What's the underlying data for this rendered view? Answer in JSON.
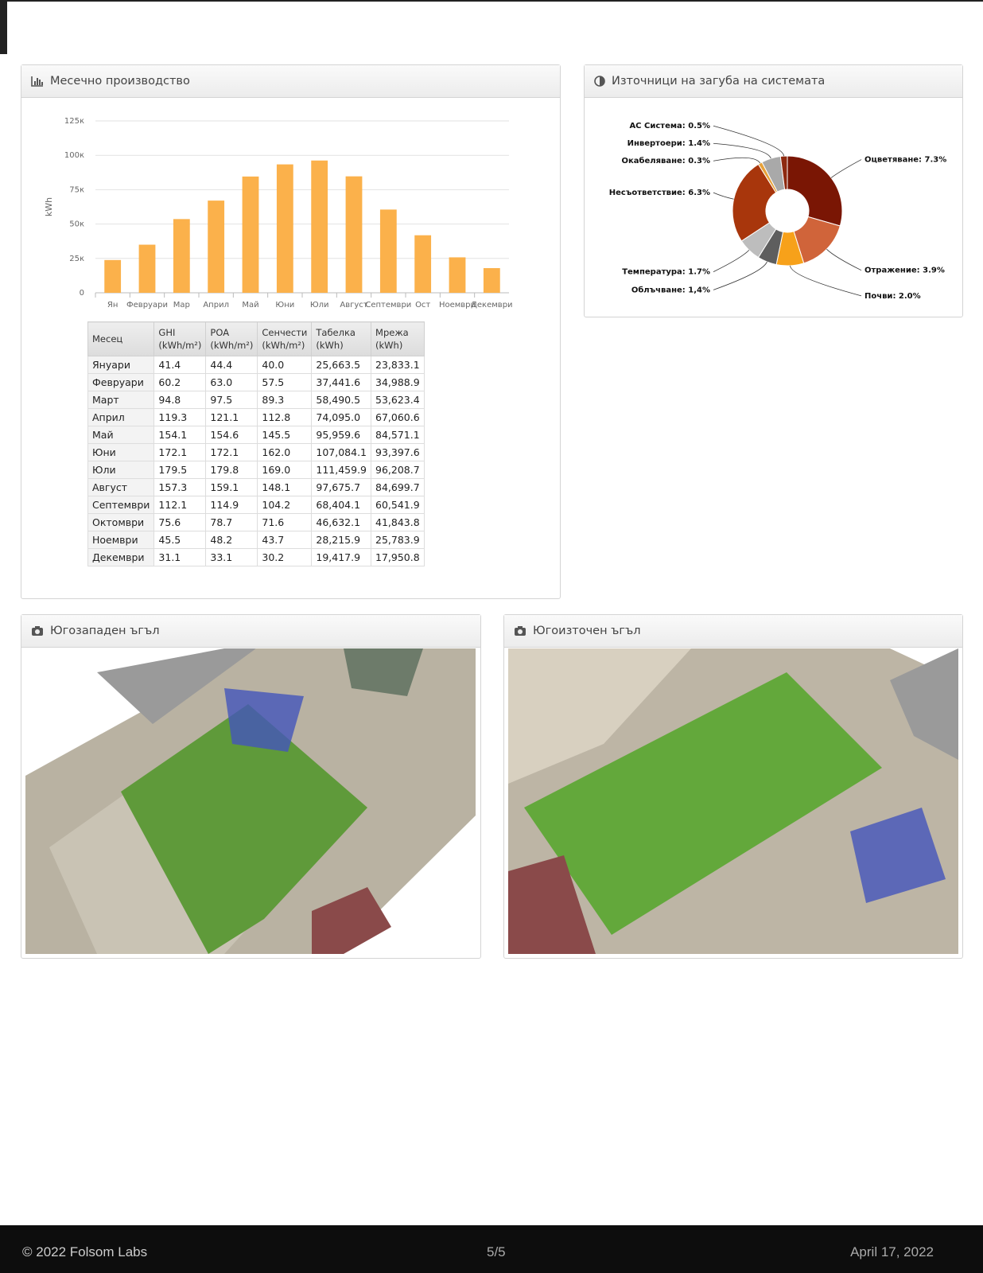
{
  "panels": [
    "Месечно производство",
    "Източници на загуба на системата",
    "Югозападен ъгъл",
    "Югоизточен ъгъл"
  ],
  "chart_data": [
    {
      "type": "bar",
      "y_label": "kWh",
      "color": "#fbb14b",
      "categories": [
        "Ян",
        "Февруари",
        "Мар",
        "Април",
        "Май",
        "Юни",
        "Юли",
        "Август",
        "Септември",
        "Ост",
        "Ноември",
        "Декември"
      ],
      "values": [
        23833.1,
        34988.9,
        53623.4,
        67060.6,
        84571.1,
        93397.6,
        96208.7,
        84699.7,
        60541.9,
        41843.8,
        25783.9,
        17950.8
      ],
      "ylim": [
        0,
        125000
      ],
      "yticks": [
        0,
        {
          "value": 25000,
          "label": "25к"
        },
        {
          "value": 50000,
          "label": "50к"
        },
        {
          "value": 75000,
          "label": "75к"
        },
        {
          "value": 100000,
          "label": "100к"
        },
        {
          "value": 125000,
          "label": "125к"
        }
      ],
      "grid": true
    },
    {
      "type": "pie",
      "donut": true,
      "values": [
        7.3,
        3.9,
        2.0,
        1.4,
        1.7,
        6.3,
        0.3,
        1.4,
        0.5
      ],
      "value_labels": [
        "Оцветяване: 7.3%",
        "Отражение: 3.9%",
        "Почви: 2.0%",
        "Облъчване: 1,4%",
        "Температура: 1.7%",
        "Несъответствие: 6.3%",
        "Окабеляване: 0.3%",
        "Инвертоери: 1.4%",
        "AC Система: 0.5%"
      ],
      "colors": [
        "#7a1604",
        "#d0643a",
        "#f7a11a",
        "#5e5e5e",
        "#bdbdbd",
        "#a8360c",
        "#e7a23a",
        "#a9a9a9",
        "#8e2a10"
      ]
    }
  ],
  "table": {
    "header": [
      [
        "Месец"
      ],
      [
        "GHI",
        "(kWh/m²)"
      ],
      [
        "POA",
        "(kWh/m²)"
      ],
      [
        "Сенчести",
        "(kWh/m²)"
      ],
      [
        "Табелка",
        "(kWh)"
      ],
      [
        "Мрежа",
        "(kWh)"
      ]
    ],
    "rows": [
      [
        "Януари",
        "41.4",
        "44.4",
        "40.0",
        "25,663.5",
        "23,833.1"
      ],
      [
        "Февруари",
        "60.2",
        "63.0",
        "57.5",
        "37,441.6",
        "34,988.9"
      ],
      [
        "Март",
        "94.8",
        "97.5",
        "89.3",
        "58,490.5",
        "53,623.4"
      ],
      [
        "Април",
        "119.3",
        "121.1",
        "112.8",
        "74,095.0",
        "67,060.6"
      ],
      [
        "Май",
        "154.1",
        "154.6",
        "145.5",
        "95,959.6",
        "84,571.1"
      ],
      [
        "Юни",
        "172.1",
        "172.1",
        "162.0",
        "107,084.1",
        "93,397.6"
      ],
      [
        "Юли",
        "179.5",
        "179.8",
        "169.0",
        "111,459.9",
        "96,208.7"
      ],
      [
        "Август",
        "157.3",
        "159.1",
        "148.1",
        "97,675.7",
        "84,699.7"
      ],
      [
        "Септември",
        "112.1",
        "114.9",
        "104.2",
        "68,404.1",
        "60,541.9"
      ],
      [
        "Октомври",
        "75.6",
        "78.7",
        "71.6",
        "46,632.1",
        "41,843.8"
      ],
      [
        "Ноември",
        "45.5",
        "48.2",
        "43.7",
        "28,215.9",
        "25,783.9"
      ],
      [
        "Декември",
        "31.1",
        "33.1",
        "30.2",
        "19,417.9",
        "17,950.8"
      ]
    ]
  },
  "footer": {
    "copyright": "© 2022 Folsom Labs",
    "page": "5/5",
    "date": "April 17, 2022"
  }
}
